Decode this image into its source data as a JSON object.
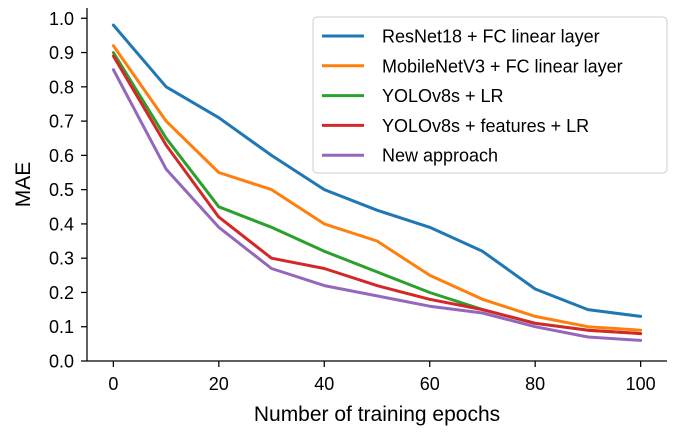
{
  "chart_data": {
    "type": "line",
    "xlabel": "Number of training epochs",
    "ylabel": "MAE",
    "xlim": [
      -5,
      105
    ],
    "ylim": [
      0.0,
      1.03
    ],
    "xticks": [
      0,
      20,
      40,
      60,
      80,
      100
    ],
    "xtick_labels": [
      "0",
      "20",
      "40",
      "60",
      "80",
      "100"
    ],
    "yticks": [
      0.0,
      0.1,
      0.2,
      0.3,
      0.4,
      0.5,
      0.6,
      0.7,
      0.8,
      0.9,
      1.0
    ],
    "ytick_labels": [
      "0.0",
      "0.1",
      "0.2",
      "0.3",
      "0.4",
      "0.5",
      "0.6",
      "0.7",
      "0.8",
      "0.9",
      "1.0"
    ],
    "grid": false,
    "legend_position": "top-right",
    "x": [
      0,
      10,
      20,
      30,
      40,
      50,
      60,
      70,
      80,
      90,
      100
    ],
    "series": [
      {
        "name": "ResNet18 + FC linear layer",
        "color": "#1f77b4",
        "values": [
          0.98,
          0.8,
          0.71,
          0.6,
          0.5,
          0.44,
          0.39,
          0.32,
          0.21,
          0.15,
          0.13
        ]
      },
      {
        "name": "MobileNetV3 + FC linear layer",
        "color": "#ff7f0e",
        "values": [
          0.92,
          0.7,
          0.55,
          0.5,
          0.4,
          0.35,
          0.25,
          0.18,
          0.13,
          0.1,
          0.09
        ]
      },
      {
        "name": "YOLOv8s + LR",
        "color": "#2ca02c",
        "values": [
          0.9,
          0.65,
          0.45,
          0.39,
          0.32,
          0.26,
          0.2,
          0.15,
          0.11,
          0.09,
          0.08
        ]
      },
      {
        "name": "YOLOv8s + features + LR",
        "color": "#d62728",
        "values": [
          0.89,
          0.63,
          0.42,
          0.3,
          0.27,
          0.22,
          0.18,
          0.15,
          0.11,
          0.09,
          0.08
        ]
      },
      {
        "name": "New approach",
        "color": "#9467bd",
        "values": [
          0.85,
          0.56,
          0.39,
          0.27,
          0.22,
          0.19,
          0.16,
          0.14,
          0.1,
          0.07,
          0.06
        ]
      }
    ]
  }
}
